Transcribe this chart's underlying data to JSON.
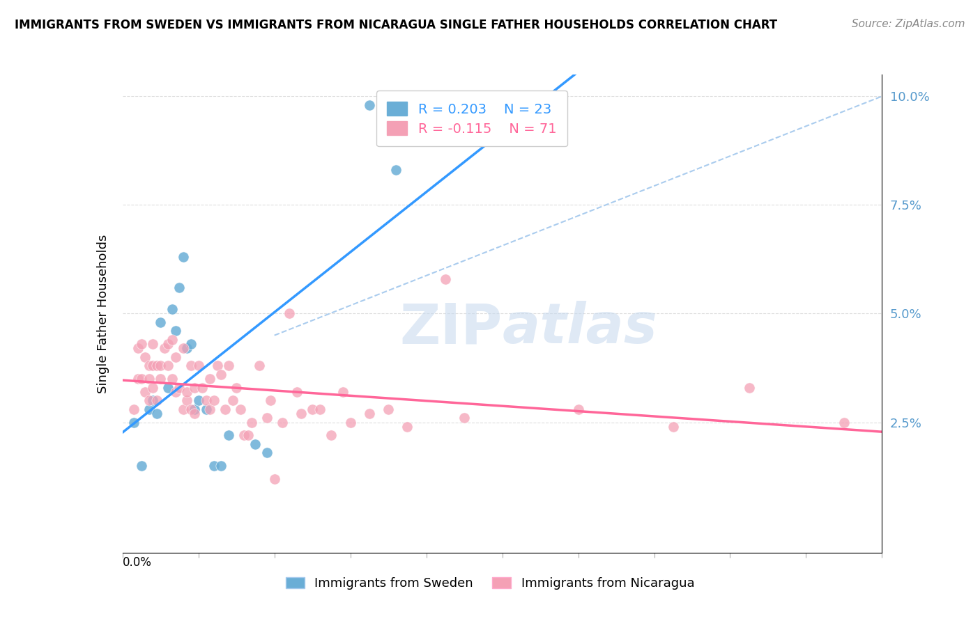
{
  "title": "IMMIGRANTS FROM SWEDEN VS IMMIGRANTS FROM NICARAGUA SINGLE FATHER HOUSEHOLDS CORRELATION CHART",
  "source": "Source: ZipAtlas.com",
  "ylabel": "Single Father Households",
  "xlim": [
    0.0,
    0.2
  ],
  "ylim": [
    -0.005,
    0.105
  ],
  "sweden_color": "#6aaed6",
  "nicaragua_color": "#f4a0b5",
  "sweden_line_color": "#3399ff",
  "nicaragua_line_color": "#ff6699",
  "dashed_line_color": "#aaccee",
  "background_color": "#ffffff",
  "sweden_R": 0.203,
  "nicaragua_R": -0.115,
  "sweden_N": 23,
  "nicaragua_N": 71,
  "sweden_x": [
    0.003,
    0.005,
    0.007,
    0.008,
    0.009,
    0.01,
    0.012,
    0.013,
    0.014,
    0.015,
    0.016,
    0.017,
    0.018,
    0.019,
    0.02,
    0.022,
    0.024,
    0.026,
    0.028,
    0.035,
    0.038,
    0.065,
    0.072
  ],
  "sweden_y": [
    0.025,
    0.015,
    0.028,
    0.03,
    0.027,
    0.048,
    0.033,
    0.051,
    0.046,
    0.056,
    0.063,
    0.042,
    0.043,
    0.028,
    0.03,
    0.028,
    0.015,
    0.015,
    0.022,
    0.02,
    0.018,
    0.098,
    0.083
  ],
  "nicaragua_x": [
    0.003,
    0.004,
    0.004,
    0.005,
    0.005,
    0.006,
    0.006,
    0.007,
    0.007,
    0.007,
    0.008,
    0.008,
    0.008,
    0.009,
    0.009,
    0.01,
    0.01,
    0.011,
    0.012,
    0.012,
    0.013,
    0.013,
    0.014,
    0.014,
    0.015,
    0.016,
    0.016,
    0.017,
    0.017,
    0.018,
    0.018,
    0.019,
    0.019,
    0.02,
    0.021,
    0.022,
    0.023,
    0.023,
    0.024,
    0.025,
    0.026,
    0.027,
    0.028,
    0.029,
    0.03,
    0.031,
    0.032,
    0.033,
    0.034,
    0.036,
    0.038,
    0.039,
    0.04,
    0.042,
    0.044,
    0.046,
    0.047,
    0.05,
    0.052,
    0.055,
    0.058,
    0.06,
    0.065,
    0.07,
    0.075,
    0.085,
    0.09,
    0.12,
    0.145,
    0.165,
    0.19
  ],
  "nicaragua_y": [
    0.028,
    0.035,
    0.042,
    0.035,
    0.043,
    0.032,
    0.04,
    0.038,
    0.035,
    0.03,
    0.038,
    0.043,
    0.033,
    0.038,
    0.03,
    0.038,
    0.035,
    0.042,
    0.038,
    0.043,
    0.044,
    0.035,
    0.04,
    0.032,
    0.033,
    0.042,
    0.028,
    0.03,
    0.032,
    0.038,
    0.028,
    0.033,
    0.027,
    0.038,
    0.033,
    0.03,
    0.035,
    0.028,
    0.03,
    0.038,
    0.036,
    0.028,
    0.038,
    0.03,
    0.033,
    0.028,
    0.022,
    0.022,
    0.025,
    0.038,
    0.026,
    0.03,
    0.012,
    0.025,
    0.05,
    0.032,
    0.027,
    0.028,
    0.028,
    0.022,
    0.032,
    0.025,
    0.027,
    0.028,
    0.024,
    0.058,
    0.026,
    0.028,
    0.024,
    0.033,
    0.025
  ]
}
